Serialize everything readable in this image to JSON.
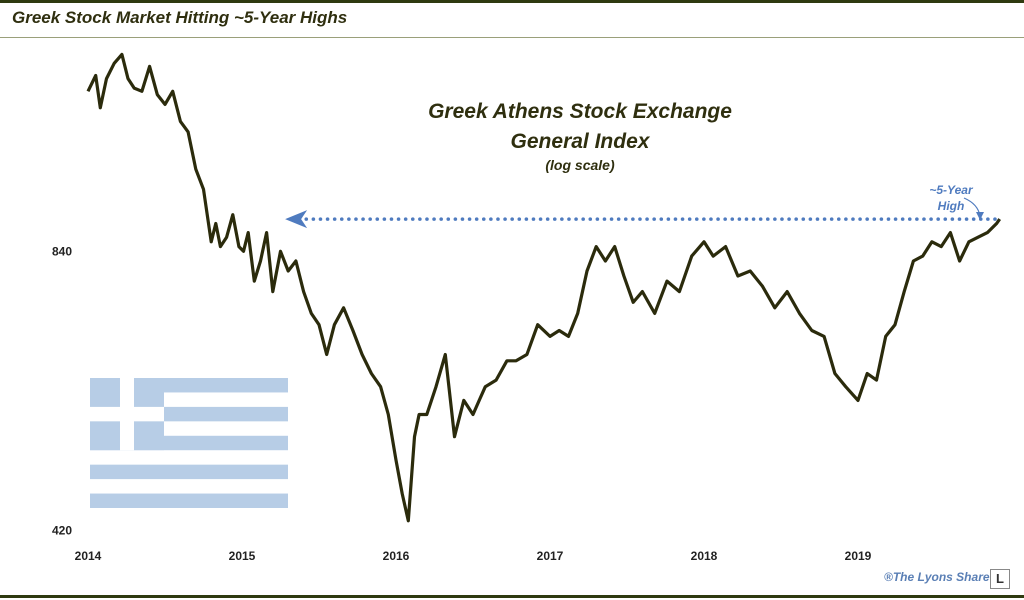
{
  "header": {
    "title": "Greek Stock Market Hitting ~5-Year Highs"
  },
  "footer": {
    "credit": "®The Lyons Share",
    "logo": "L"
  },
  "colors": {
    "line": "#2b2b0c",
    "dotted": "#4f7bbf",
    "annotation": "#4f7bbf",
    "flag": "#b7cde6",
    "title": "#2f2f0f"
  },
  "chart_data": {
    "type": "line",
    "title": "Greek Athens Stock Exchange",
    "subtitle": "General Index",
    "note": "(log scale)",
    "yscale": "log",
    "ylim": [
      410,
      1420
    ],
    "xlim": [
      2014.0,
      2020.0
    ],
    "yticks": [
      {
        "value": 840,
        "label": "840"
      },
      {
        "value": 420,
        "label": "420"
      }
    ],
    "xticks": [
      {
        "value": 2014.0,
        "label": "2014"
      },
      {
        "value": 2015.0,
        "label": "2015"
      },
      {
        "value": 2016.0,
        "label": "2016"
      },
      {
        "value": 2017.0,
        "label": "2017"
      },
      {
        "value": 2018.0,
        "label": "2018"
      },
      {
        "value": 2019.0,
        "label": "2019"
      }
    ],
    "annotation": {
      "text_line1": "~5-Year",
      "text_line2": "High",
      "level": 910,
      "from_x": 2015.28,
      "to_x": 2019.92
    },
    "series": [
      {
        "x": [
          2014.0,
          2014.05,
          2014.08,
          2014.12,
          2014.17,
          2014.22,
          2014.26,
          2014.3,
          2014.35,
          2014.4,
          2014.45,
          2014.5,
          2014.55,
          2014.6,
          2014.65,
          2014.7,
          2014.75,
          2014.8,
          2014.83,
          2014.86,
          2014.9,
          2014.94,
          2014.98,
          2015.01,
          2015.04,
          2015.08,
          2015.12,
          2015.16,
          2015.2,
          2015.25,
          2015.3,
          2015.35,
          2015.4,
          2015.45,
          2015.5,
          2015.55,
          2015.6,
          2015.66,
          2015.72,
          2015.78,
          2015.84,
          2015.9,
          2015.95,
          2016.0,
          2016.04,
          2016.08,
          2016.12,
          2016.15,
          2016.2,
          2016.26,
          2016.32,
          2016.38,
          2016.44,
          2016.5,
          2016.54,
          2016.58,
          2016.65,
          2016.72,
          2016.78,
          2016.85,
          2016.92,
          2017.0,
          2017.06,
          2017.12,
          2017.18,
          2017.24,
          2017.3,
          2017.36,
          2017.42,
          2017.48,
          2017.54,
          2017.6,
          2017.68,
          2017.76,
          2017.84,
          2017.92,
          2018.0,
          2018.06,
          2018.14,
          2018.22,
          2018.3,
          2018.38,
          2018.46,
          2018.54,
          2018.62,
          2018.7,
          2018.78,
          2018.85,
          2018.92,
          2019.0,
          2019.06,
          2019.12,
          2019.18,
          2019.24,
          2019.3,
          2019.36,
          2019.42,
          2019.48,
          2019.54,
          2019.6,
          2019.66,
          2019.72,
          2019.78,
          2019.84,
          2019.9,
          2019.92
        ],
        "values": [
          1250,
          1300,
          1200,
          1290,
          1340,
          1370,
          1290,
          1260,
          1250,
          1330,
          1240,
          1210,
          1250,
          1160,
          1130,
          1030,
          980,
          860,
          900,
          850,
          870,
          920,
          850,
          840,
          880,
          780,
          820,
          880,
          760,
          840,
          800,
          820,
          760,
          720,
          700,
          650,
          700,
          730,
          690,
          650,
          620,
          600,
          560,
          500,
          460,
          430,
          530,
          560,
          560,
          600,
          650,
          530,
          580,
          560,
          580,
          600,
          610,
          640,
          640,
          650,
          700,
          680,
          690,
          680,
          720,
          800,
          850,
          820,
          850,
          790,
          740,
          760,
          720,
          780,
          760,
          830,
          860,
          830,
          850,
          790,
          800,
          770,
          730,
          760,
          720,
          690,
          680,
          620,
          600,
          580,
          620,
          610,
          680,
          700,
          760,
          820,
          830,
          860,
          850,
          880,
          820,
          860,
          870,
          880,
          900,
          910
        ]
      }
    ]
  }
}
